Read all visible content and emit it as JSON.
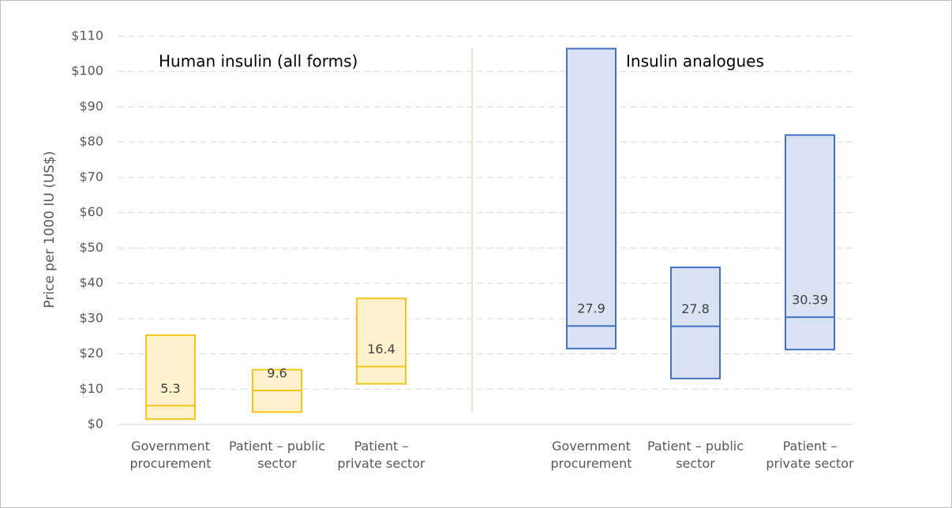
{
  "chart_data": {
    "type": "range-bar",
    "ylabel": "Price per 1000 IU (US$)",
    "ylim": [
      0,
      110
    ],
    "yticks": [
      {
        "value": 0,
        "label": "$0"
      },
      {
        "value": 10,
        "label": "$10"
      },
      {
        "value": 20,
        "label": "$20"
      },
      {
        "value": 30,
        "label": "$30"
      },
      {
        "value": 40,
        "label": "$40"
      },
      {
        "value": 50,
        "label": "$50"
      },
      {
        "value": 60,
        "label": "$60"
      },
      {
        "value": 70,
        "label": "$70"
      },
      {
        "value": 80,
        "label": "$80"
      },
      {
        "value": 90,
        "label": "$90"
      },
      {
        "value": 100,
        "label": "$100"
      },
      {
        "value": 110,
        "label": "$110"
      }
    ],
    "grid": true,
    "groups": [
      {
        "title": "Human insulin (all forms)",
        "color": "#f5c518",
        "fill": "#fff2cc",
        "categories": [
          "Government procurement",
          "Patient – public sector",
          "Patient – private sector"
        ],
        "low": [
          1.5,
          3.5,
          11.5
        ],
        "high": [
          25.3,
          15.5,
          35.7
        ],
        "median": [
          5.3,
          9.6,
          16.4
        ]
      },
      {
        "title": "Insulin analogues",
        "color": "#4472c4",
        "fill": "#dae3f3",
        "categories": [
          "Government procurement",
          "Patient – public sector",
          "Patient – private sector"
        ],
        "low": [
          21.5,
          13,
          21.2
        ],
        "high": [
          106.5,
          44.5,
          82
        ],
        "median": [
          27.9,
          27.8,
          30.39
        ]
      }
    ]
  }
}
